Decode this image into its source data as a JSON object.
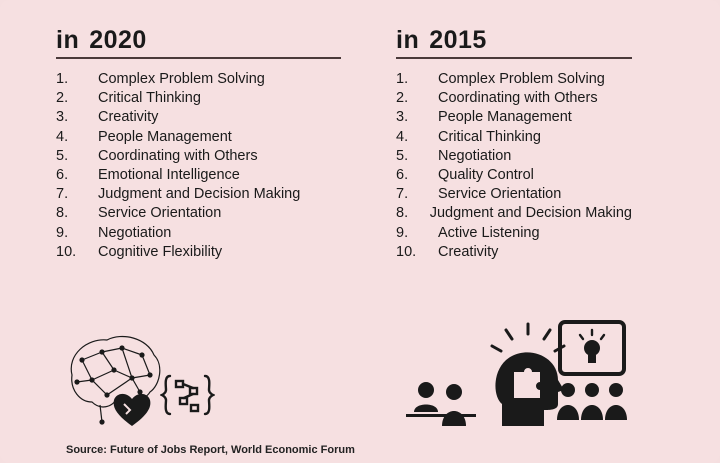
{
  "columns": [
    {
      "prefix": "in",
      "year": "2020",
      "items": [
        {
          "num": "1.",
          "label": "Complex Problem Solving"
        },
        {
          "num": "2.",
          "label": "Critical Thinking"
        },
        {
          "num": "3.",
          "label": "Creativity"
        },
        {
          "num": "4.",
          "label": "People Management"
        },
        {
          "num": "5.",
          "label": "Coordinating with Others"
        },
        {
          "num": "6.",
          "label": "Emotional Intelligence"
        },
        {
          "num": "7.",
          "label": "Judgment and Decision Making"
        },
        {
          "num": "8.",
          "label": "Service Orientation"
        },
        {
          "num": "9.",
          "label": "Negotiation"
        },
        {
          "num": "10.",
          "label": "Cognitive Flexibility"
        }
      ]
    },
    {
      "prefix": "in",
      "year": "2015",
      "items": [
        {
          "num": "1.",
          "label": "Complex Problem Solving"
        },
        {
          "num": "2.",
          "label": "Coordinating with Others"
        },
        {
          "num": "3.",
          "label": "People Management"
        },
        {
          "num": "4.",
          "label": "Critical Thinking"
        },
        {
          "num": "5.",
          "label": "Negotiation"
        },
        {
          "num": "6.",
          "label": "Quality Control"
        },
        {
          "num": "7.",
          "label": "Service Orientation"
        },
        {
          "num": "8.",
          "label": "Judgment and Decision Making"
        },
        {
          "num": "9.",
          "label": "Active Listening"
        },
        {
          "num": "10.",
          "label": "Creativity"
        }
      ]
    }
  ],
  "source": "Source: Future of Jobs Report, World Economic Forum",
  "icons": [
    "network-brain-icon",
    "heart-icon",
    "code-braces-icon",
    "presenter-audience-icon",
    "puzzle-head-icon",
    "lightbulb-screen-icon"
  ],
  "colors": {
    "background": "#f6e0e1",
    "text": "#1a1a1a",
    "rule": "#4a3a3a"
  }
}
